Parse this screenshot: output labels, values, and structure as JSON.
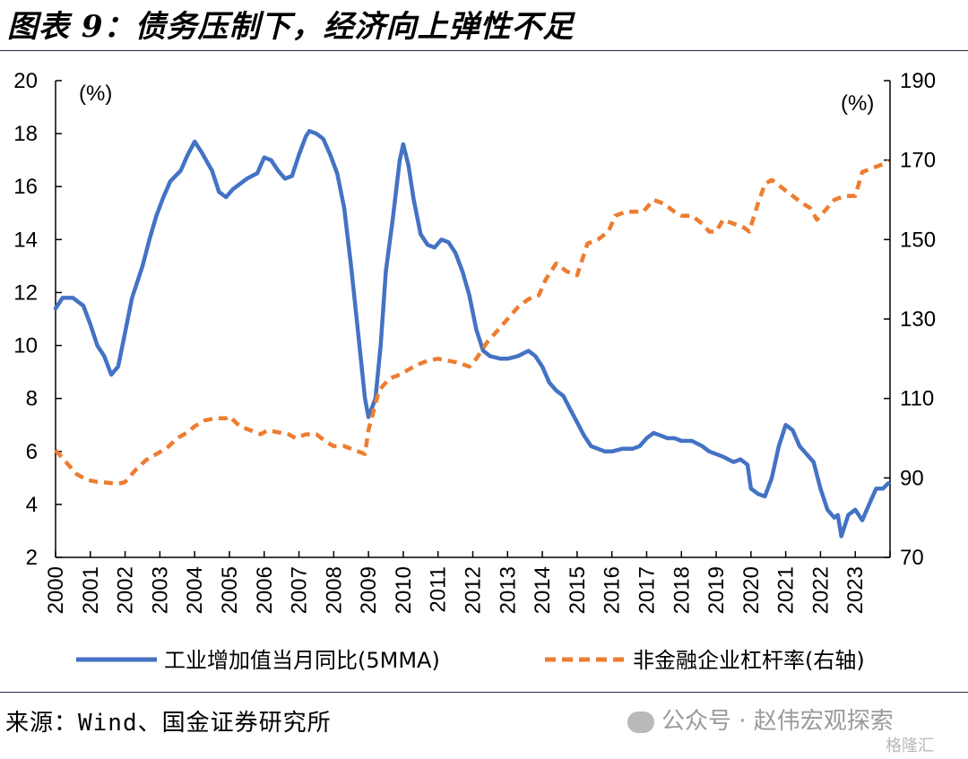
{
  "header": {
    "title": "图表 9：债务压制下，经济向上弹性不足"
  },
  "footer": {
    "source": "来源：Wind、国金证券研究所",
    "watermark": "公众号 · 赵伟宏观探索",
    "brand": "格隆汇"
  },
  "chart_data": {
    "type": "line",
    "x_tick_labels": [
      "2000",
      "2001",
      "2002",
      "2003",
      "2004",
      "2005",
      "2006",
      "2007",
      "2008",
      "2009",
      "2010",
      "2011",
      "2012",
      "2013",
      "2014",
      "2015",
      "2016",
      "2017",
      "2018",
      "2019",
      "2020",
      "2021",
      "2022",
      "2023"
    ],
    "y_left": {
      "unit": "(%)",
      "ylim": [
        2,
        20
      ],
      "ticks": [
        2,
        4,
        6,
        8,
        10,
        12,
        14,
        16,
        18,
        20
      ]
    },
    "y_right": {
      "unit": "(%)",
      "ylim": [
        70,
        190
      ],
      "ticks": [
        70,
        90,
        110,
        130,
        150,
        170,
        190
      ]
    },
    "grid": false,
    "legend_position": "bottom",
    "series": [
      {
        "name": "工业增加值当月同比(5MMA)",
        "axis": "left",
        "color": "#4472C4",
        "style": "solid",
        "points": [
          [
            2000.0,
            11.4
          ],
          [
            2000.2,
            11.8
          ],
          [
            2000.5,
            11.8
          ],
          [
            2000.8,
            11.5
          ],
          [
            2001.0,
            10.8
          ],
          [
            2001.2,
            10.0
          ],
          [
            2001.4,
            9.6
          ],
          [
            2001.6,
            8.9
          ],
          [
            2001.8,
            9.2
          ],
          [
            2002.0,
            10.5
          ],
          [
            2002.2,
            11.8
          ],
          [
            2002.5,
            13.0
          ],
          [
            2002.7,
            14.0
          ],
          [
            2002.9,
            14.9
          ],
          [
            2003.1,
            15.6
          ],
          [
            2003.3,
            16.2
          ],
          [
            2003.6,
            16.6
          ],
          [
            2003.8,
            17.2
          ],
          [
            2004.0,
            17.7
          ],
          [
            2004.2,
            17.3
          ],
          [
            2004.5,
            16.6
          ],
          [
            2004.7,
            15.8
          ],
          [
            2004.9,
            15.6
          ],
          [
            2005.1,
            15.9
          ],
          [
            2005.3,
            16.1
          ],
          [
            2005.5,
            16.3
          ],
          [
            2005.8,
            16.5
          ],
          [
            2006.0,
            17.1
          ],
          [
            2006.2,
            17.0
          ],
          [
            2006.4,
            16.6
          ],
          [
            2006.6,
            16.3
          ],
          [
            2006.8,
            16.4
          ],
          [
            2007.0,
            17.2
          ],
          [
            2007.2,
            17.9
          ],
          [
            2007.3,
            18.1
          ],
          [
            2007.5,
            18.0
          ],
          [
            2007.7,
            17.8
          ],
          [
            2007.9,
            17.2
          ],
          [
            2008.1,
            16.5
          ],
          [
            2008.3,
            15.2
          ],
          [
            2008.5,
            13.0
          ],
          [
            2008.7,
            10.5
          ],
          [
            2008.9,
            8.0
          ],
          [
            2009.0,
            7.3
          ],
          [
            2009.2,
            8.0
          ],
          [
            2009.35,
            10.0
          ],
          [
            2009.5,
            12.8
          ],
          [
            2009.7,
            14.8
          ],
          [
            2009.9,
            17.0
          ],
          [
            2010.0,
            17.6
          ],
          [
            2010.15,
            16.8
          ],
          [
            2010.3,
            15.5
          ],
          [
            2010.5,
            14.2
          ],
          [
            2010.7,
            13.8
          ],
          [
            2010.9,
            13.7
          ],
          [
            2011.1,
            14.0
          ],
          [
            2011.3,
            13.9
          ],
          [
            2011.5,
            13.5
          ],
          [
            2011.7,
            12.8
          ],
          [
            2011.9,
            11.9
          ],
          [
            2012.1,
            10.6
          ],
          [
            2012.3,
            9.8
          ],
          [
            2012.5,
            9.6
          ],
          [
            2012.8,
            9.5
          ],
          [
            2013.0,
            9.5
          ],
          [
            2013.3,
            9.6
          ],
          [
            2013.6,
            9.8
          ],
          [
            2013.8,
            9.6
          ],
          [
            2014.0,
            9.2
          ],
          [
            2014.2,
            8.6
          ],
          [
            2014.4,
            8.3
          ],
          [
            2014.6,
            8.1
          ],
          [
            2014.8,
            7.6
          ],
          [
            2015.0,
            7.1
          ],
          [
            2015.2,
            6.6
          ],
          [
            2015.4,
            6.2
          ],
          [
            2015.6,
            6.1
          ],
          [
            2015.8,
            6.0
          ],
          [
            2016.0,
            6.0
          ],
          [
            2016.3,
            6.1
          ],
          [
            2016.6,
            6.1
          ],
          [
            2016.8,
            6.2
          ],
          [
            2017.0,
            6.5
          ],
          [
            2017.2,
            6.7
          ],
          [
            2017.4,
            6.6
          ],
          [
            2017.6,
            6.5
          ],
          [
            2017.8,
            6.5
          ],
          [
            2018.0,
            6.4
          ],
          [
            2018.3,
            6.4
          ],
          [
            2018.6,
            6.2
          ],
          [
            2018.8,
            6.0
          ],
          [
            2019.0,
            5.9
          ],
          [
            2019.2,
            5.8
          ],
          [
            2019.5,
            5.6
          ],
          [
            2019.7,
            5.7
          ],
          [
            2019.9,
            5.5
          ],
          [
            2020.0,
            4.6
          ],
          [
            2020.2,
            4.4
          ],
          [
            2020.4,
            4.3
          ],
          [
            2020.6,
            5.0
          ],
          [
            2020.8,
            6.2
          ],
          [
            2021.0,
            7.0
          ],
          [
            2021.2,
            6.8
          ],
          [
            2021.4,
            6.2
          ],
          [
            2021.6,
            5.9
          ],
          [
            2021.8,
            5.6
          ],
          [
            2022.0,
            4.6
          ],
          [
            2022.2,
            3.8
          ],
          [
            2022.4,
            3.5
          ],
          [
            2022.5,
            3.6
          ],
          [
            2022.6,
            2.8
          ],
          [
            2022.8,
            3.6
          ],
          [
            2023.0,
            3.8
          ],
          [
            2023.2,
            3.4
          ],
          [
            2023.4,
            4.0
          ],
          [
            2023.6,
            4.6
          ],
          [
            2023.8,
            4.6
          ],
          [
            2023.95,
            4.8
          ]
        ]
      },
      {
        "name": "非金融企业杠杆率(右轴)",
        "axis": "right",
        "color": "#ED7D31",
        "style": "dashed",
        "points": [
          [
            2000.0,
            97
          ],
          [
            2000.3,
            94
          ],
          [
            2000.6,
            91
          ],
          [
            2000.9,
            89.5
          ],
          [
            2001.2,
            89
          ],
          [
            2001.5,
            88.8
          ],
          [
            2001.8,
            88.5
          ],
          [
            2002.0,
            89
          ],
          [
            2002.3,
            92
          ],
          [
            2002.6,
            94.5
          ],
          [
            2002.9,
            96
          ],
          [
            2003.2,
            97.5
          ],
          [
            2003.5,
            100
          ],
          [
            2003.8,
            101.5
          ],
          [
            2004.0,
            103
          ],
          [
            2004.3,
            104.5
          ],
          [
            2004.6,
            105
          ],
          [
            2004.9,
            105
          ],
          [
            2005.0,
            105.5
          ],
          [
            2005.3,
            103
          ],
          [
            2005.6,
            102
          ],
          [
            2005.9,
            101
          ],
          [
            2006.1,
            102
          ],
          [
            2006.4,
            101.5
          ],
          [
            2006.7,
            101
          ],
          [
            2006.9,
            100
          ],
          [
            2007.2,
            101
          ],
          [
            2007.5,
            101
          ],
          [
            2007.8,
            99
          ],
          [
            2008.0,
            98
          ],
          [
            2008.3,
            98
          ],
          [
            2008.6,
            97
          ],
          [
            2008.9,
            96
          ],
          [
            2009.0,
            102
          ],
          [
            2009.3,
            112
          ],
          [
            2009.6,
            115
          ],
          [
            2009.9,
            116
          ],
          [
            2010.1,
            117
          ],
          [
            2010.4,
            118.5
          ],
          [
            2010.7,
            119.5
          ],
          [
            2011.0,
            120
          ],
          [
            2011.3,
            119.5
          ],
          [
            2011.6,
            119
          ],
          [
            2011.9,
            118
          ],
          [
            2012.1,
            120
          ],
          [
            2012.4,
            124
          ],
          [
            2012.7,
            127
          ],
          [
            2013.0,
            130
          ],
          [
            2013.3,
            133
          ],
          [
            2013.6,
            135
          ],
          [
            2013.9,
            136
          ],
          [
            2014.1,
            140
          ],
          [
            2014.4,
            144
          ],
          [
            2014.7,
            142
          ],
          [
            2015.0,
            141
          ],
          [
            2015.3,
            149
          ],
          [
            2015.6,
            150
          ],
          [
            2015.9,
            152
          ],
          [
            2016.1,
            156
          ],
          [
            2016.4,
            157
          ],
          [
            2016.7,
            157
          ],
          [
            2016.9,
            157
          ],
          [
            2017.2,
            160
          ],
          [
            2017.5,
            159
          ],
          [
            2017.8,
            157
          ],
          [
            2018.0,
            156
          ],
          [
            2018.3,
            156
          ],
          [
            2018.6,
            154
          ],
          [
            2018.8,
            152
          ],
          [
            2019.0,
            152
          ],
          [
            2019.2,
            155
          ],
          [
            2019.5,
            154
          ],
          [
            2019.8,
            153
          ],
          [
            2019.95,
            152
          ],
          [
            2020.2,
            159
          ],
          [
            2020.4,
            164
          ],
          [
            2020.6,
            165
          ],
          [
            2020.9,
            163
          ],
          [
            2021.2,
            161
          ],
          [
            2021.5,
            159
          ],
          [
            2021.7,
            158
          ],
          [
            2021.9,
            155
          ],
          [
            2022.1,
            157
          ],
          [
            2022.4,
            160
          ],
          [
            2022.7,
            161
          ],
          [
            2023.0,
            161
          ],
          [
            2023.2,
            167
          ],
          [
            2023.5,
            168
          ],
          [
            2023.8,
            169
          ],
          [
            2023.95,
            170
          ]
        ]
      }
    ]
  }
}
